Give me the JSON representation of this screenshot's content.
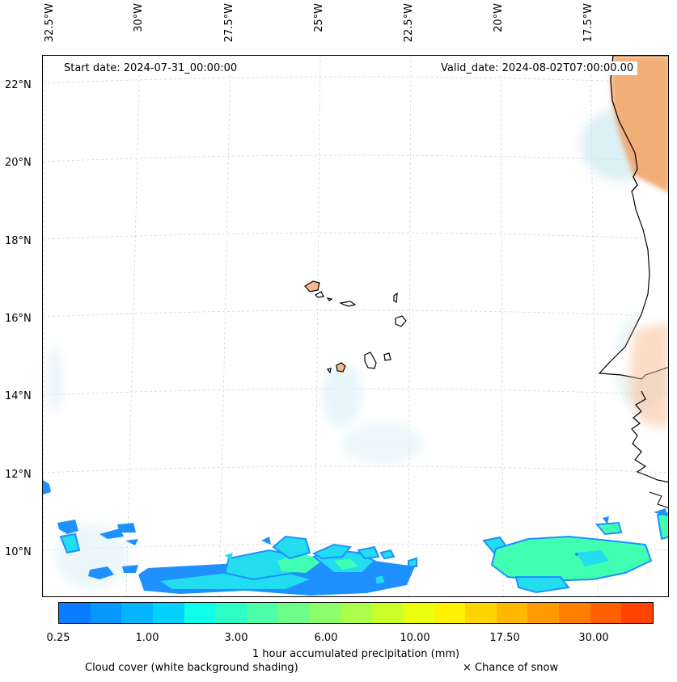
{
  "axes": {
    "lon_labels": [
      "32.5°W",
      "30°W",
      "27.5°W",
      "25°W",
      "22.5°W",
      "20°W",
      "17.5°W"
    ],
    "lat_labels": [
      "22°N",
      "20°N",
      "18°N",
      "16°N",
      "14°N",
      "12°N",
      "10°N"
    ]
  },
  "info": {
    "start_date": "Start date: 2024-07-31_00:00:00",
    "valid_date": "Valid_date: 2024-08-02T07:00:00.00"
  },
  "colorbar": {
    "tick_labels": [
      "0.25",
      "1.00",
      "3.00",
      "6.00",
      "10.00",
      "17.50",
      "30.00"
    ],
    "title": "1 hour accumulated precipitation (mm)",
    "colors": [
      "#0a7cff",
      "#0798ff",
      "#05b4ff",
      "#03d2ff",
      "#10ffe9",
      "#2dffc7",
      "#4dffa8",
      "#6dff89",
      "#8cff6a",
      "#abff4b",
      "#caff2c",
      "#e9ff0e",
      "#fff200",
      "#ffd500",
      "#ffb800",
      "#ff9b00",
      "#ff7e00",
      "#ff6100",
      "#ff4400"
    ]
  },
  "legend": {
    "cloud_cover": "Cloud cover (white background shading)",
    "snow": "× Chance of snow"
  },
  "colors": {
    "land": "#f6b98c",
    "land_dark": "#f0a060",
    "cloud": "#cfe8f0",
    "precip_light": "#22ddf0",
    "precip_blue": "#1e90ff",
    "precip_green": "#40ffb0"
  }
}
